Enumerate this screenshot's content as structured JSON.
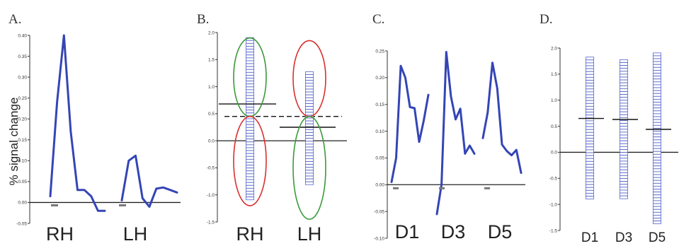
{
  "figure": {
    "ylabel": "% signal change"
  },
  "chart_data": [
    {
      "panel": "A.",
      "type": "line",
      "ylim": [
        -0.05,
        0.4
      ],
      "yticks": [
        "-0.05",
        "0.00",
        "0.05",
        "0.10",
        "0.15",
        "0.20",
        "0.25",
        "0.30",
        "0.35",
        "0.40"
      ],
      "groups": [
        {
          "label": "RH",
          "values": [
            0.015,
            0.24,
            0.4,
            0.17,
            0.03,
            0.03,
            0.015,
            -0.02,
            -0.02
          ]
        },
        {
          "label": "LH",
          "values": [
            0.005,
            0.1,
            0.112,
            0.01,
            -0.01,
            0.033,
            0.036,
            0.03,
            0.024
          ]
        }
      ],
      "colors": {
        "line": "#3445b5"
      },
      "grid": false
    },
    {
      "panel": "B.",
      "type": "scatter",
      "ylim": [
        -1.5,
        2.0
      ],
      "yticks": [
        "-1.5",
        "-1.0",
        "-0.5",
        "0.0",
        "0.5",
        "1.0",
        "1.5",
        "2.0"
      ],
      "groups": [
        {
          "label": "RH",
          "mean": 0.68,
          "range": [
            -1.1,
            1.88
          ]
        },
        {
          "label": "LH",
          "mean": 0.25,
          "range": [
            -0.8,
            1.25
          ]
        }
      ],
      "reference_line": 0.45,
      "ellipses": [
        {
          "group": "RH",
          "y_range": [
            0.45,
            1.9
          ],
          "color": "#3a9a3a"
        },
        {
          "group": "RH",
          "y_range": [
            -1.2,
            0.45
          ],
          "color": "#d93030"
        },
        {
          "group": "LH",
          "y_range": [
            0.45,
            1.85
          ],
          "color": "#d93030"
        },
        {
          "group": "LH",
          "y_range": [
            -1.45,
            0.45
          ],
          "color": "#3a9a3a"
        }
      ],
      "grid": false
    },
    {
      "panel": "C.",
      "type": "line",
      "ylim": [
        -0.1,
        0.25
      ],
      "yticks": [
        "-0.10",
        "-0.05",
        "0.00",
        "0.05",
        "0.10",
        "0.15",
        "0.20",
        "0.25"
      ],
      "groups": [
        {
          "label": "D1",
          "values": [
            0.005,
            0.05,
            0.222,
            0.2,
            0.145,
            0.143,
            0.08,
            0.12,
            0.168
          ]
        },
        {
          "label": "D3",
          "values": [
            -0.055,
            0.0,
            0.248,
            0.165,
            0.122,
            0.142,
            0.058,
            0.073,
            0.058
          ]
        },
        {
          "label": "D5",
          "values": [
            0.087,
            0.135,
            0.228,
            0.18,
            0.075,
            0.063,
            0.055,
            0.065,
            0.022
          ]
        }
      ],
      "colors": {
        "line": "#3445b5"
      },
      "grid": false
    },
    {
      "panel": "D.",
      "type": "scatter",
      "ylim": [
        -1.5,
        2.0
      ],
      "yticks": [
        "-1.5",
        "-1.0",
        "-0.5",
        "0.0",
        "0.5",
        "1.0",
        "1.5",
        "2.0"
      ],
      "groups": [
        {
          "label": "D1",
          "mean": 0.65,
          "range": [
            -0.9,
            1.8
          ]
        },
        {
          "label": "D3",
          "mean": 0.63,
          "range": [
            -0.9,
            1.75
          ]
        },
        {
          "label": "D5",
          "mean": 0.44,
          "range": [
            -1.4,
            1.88
          ]
        }
      ],
      "grid": false
    }
  ]
}
